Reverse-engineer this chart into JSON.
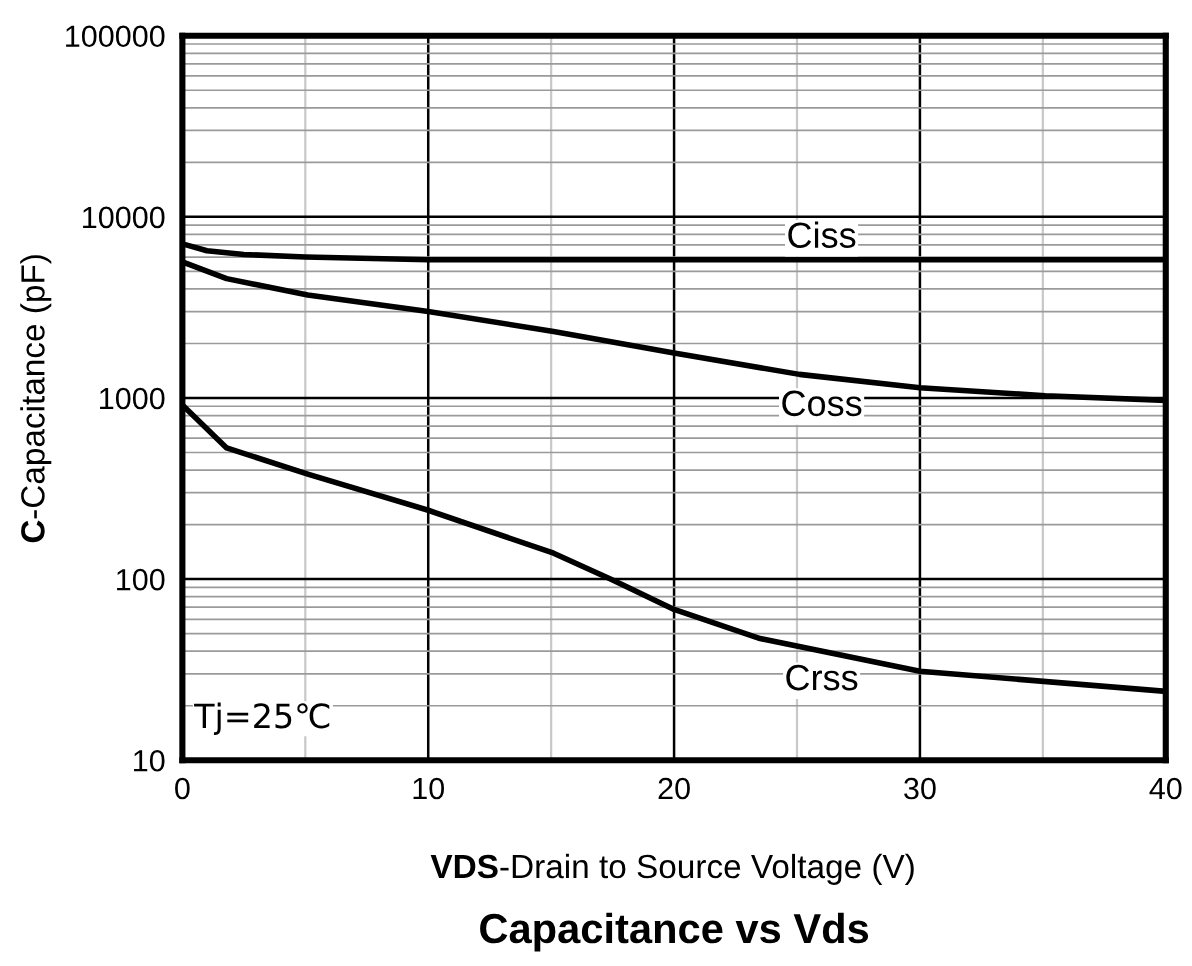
{
  "chart_data": {
    "type": "line",
    "title": "Capacitance vs Vds",
    "xlabel": "VDS-Drain to Source Voltage (V)",
    "ylabel": "C-Capacitance (pF)",
    "annotations": [
      "Tj=25℃"
    ],
    "series": [
      {
        "name": "Ciss",
        "color": "#000000",
        "x": [
          0,
          1,
          2.5,
          5,
          10,
          20,
          30,
          40
        ],
        "values": [
          7100,
          6500,
          6200,
          6000,
          5800,
          5800,
          5800,
          5800
        ]
      },
      {
        "name": "Coss",
        "color": "#000000",
        "x": [
          0,
          1.8,
          5.1,
          10,
          15.1,
          20,
          25.1,
          30,
          35.1,
          40
        ],
        "values": [
          5640,
          4560,
          3700,
          3000,
          2330,
          1770,
          1350,
          1140,
          1030,
          970
        ]
      },
      {
        "name": "Crss",
        "color": "#000000",
        "x": [
          0,
          1.8,
          5.1,
          10,
          15.1,
          17.5,
          20,
          23.5,
          30,
          40
        ],
        "values": [
          916,
          530,
          380,
          240,
          139,
          99,
          68,
          47,
          31,
          24
        ]
      }
    ],
    "log": "y",
    "xlim": [
      0,
      40
    ],
    "xticks": [
      0,
      10,
      20,
      30,
      40
    ],
    "ylim": [
      10,
      100000
    ],
    "yticks": [
      10,
      100,
      1000,
      10000,
      100000
    ],
    "grid": true,
    "marker": "none",
    "line_style": "solid",
    "legend": false
  }
}
